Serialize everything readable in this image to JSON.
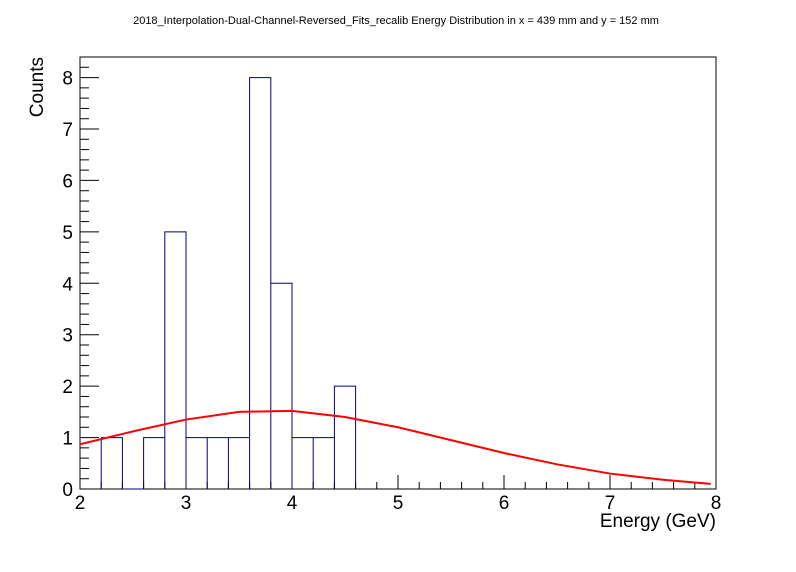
{
  "chart_data": {
    "type": "bar",
    "title": "2018_Interpolation-Dual-Channel-Reversed_Fits_recalib Energy Distribution in x = 439 mm and y = 152 mm",
    "xlabel": "Energy (GeV)",
    "ylabel": "Counts",
    "xlim": [
      2,
      8
    ],
    "ylim": [
      0,
      8.4
    ],
    "xticks": [
      "2",
      "3",
      "4",
      "5",
      "6",
      "7",
      "8"
    ],
    "yticks": [
      "0",
      "1",
      "2",
      "3",
      "4",
      "5",
      "6",
      "7",
      "8"
    ],
    "grid": false,
    "legend": "none",
    "histogram": {
      "name": "",
      "bin_edges": [
        2.2,
        2.4,
        2.6,
        2.8,
        3.0,
        3.2,
        3.4,
        3.6,
        3.8,
        4.0,
        4.2,
        4.4,
        4.6
      ],
      "counts": [
        1,
        0,
        1,
        5,
        1,
        1,
        1,
        8,
        4,
        1,
        1,
        2
      ],
      "color": "#000080"
    },
    "fit": {
      "type": "gaussian",
      "color": "#ff0000",
      "x": [
        2.0,
        2.5,
        3.0,
        3.5,
        4.0,
        4.5,
        5.0,
        5.5,
        6.0,
        6.5,
        7.0,
        7.5,
        7.95
      ],
      "y": [
        0.87,
        1.12,
        1.35,
        1.5,
        1.52,
        1.4,
        1.2,
        0.95,
        0.7,
        0.48,
        0.3,
        0.18,
        0.1
      ]
    }
  }
}
